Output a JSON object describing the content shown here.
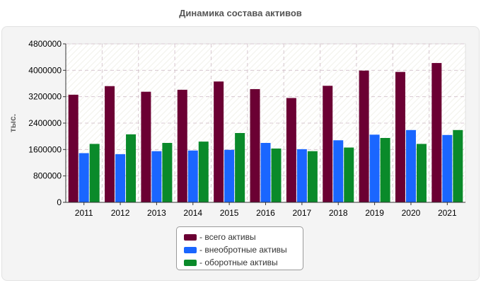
{
  "chart_data": {
    "type": "bar",
    "title": "Динамика состава активов",
    "ylabel": "тыс.",
    "xlabel": "",
    "ylim": [
      0,
      4800000
    ],
    "yticks": [
      0,
      800000,
      1600000,
      2400000,
      3200000,
      4000000,
      4800000
    ],
    "ytick_labels": [
      "0",
      "800000",
      "1600000",
      "2400000",
      "3200000",
      "4000000",
      "4800000"
    ],
    "categories": [
      "2011",
      "2012",
      "2013",
      "2014",
      "2015",
      "2016",
      "2017",
      "2018",
      "2019",
      "2020",
      "2021"
    ],
    "series": [
      {
        "name": "- всего активы",
        "color": "#6b0033",
        "values": [
          3260000,
          3520000,
          3350000,
          3410000,
          3660000,
          3430000,
          3160000,
          3530000,
          3990000,
          3950000,
          4220000
        ]
      },
      {
        "name": "- внеобротные активы",
        "color": "#1a66ff",
        "values": [
          1490000,
          1460000,
          1550000,
          1570000,
          1590000,
          1800000,
          1610000,
          1880000,
          2050000,
          2190000,
          2040000
        ]
      },
      {
        "name": "- оборотные активы",
        "color": "#0a8a2a",
        "values": [
          1770000,
          2060000,
          1800000,
          1840000,
          2100000,
          1630000,
          1550000,
          1660000,
          1950000,
          1770000,
          2190000
        ]
      }
    ],
    "legend_position": "bottom-center",
    "grid": true
  }
}
